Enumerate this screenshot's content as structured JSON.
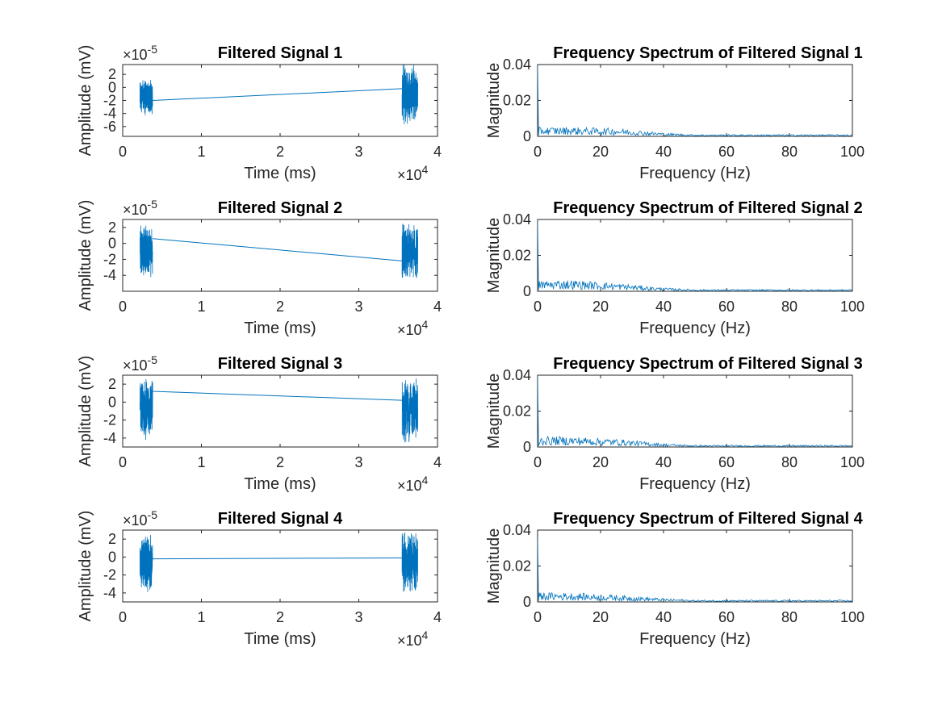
{
  "colors": {
    "series": "#0072BD",
    "axes": "#262626",
    "text": "#000000"
  },
  "chart_data": [
    {
      "type": "line",
      "panel": "signal",
      "index": 1,
      "title": "Filtered Signal 1",
      "xlabel": "Time (ms)",
      "ylabel": "Amplitude (mV)",
      "x_exponent_label": "×10",
      "x_exponent": "4",
      "y_exponent_label": "×10",
      "y_exponent": "-5",
      "xlim": [
        0,
        4
      ],
      "ylim": [
        -7.5,
        3.5
      ],
      "xticks": [
        "0",
        "1",
        "2",
        "3",
        "4"
      ],
      "xtick_values": [
        0,
        1,
        2,
        3,
        4
      ],
      "yticks": [
        "2",
        "0",
        "-2",
        "-4",
        "-6"
      ],
      "ytick_values": [
        2,
        0,
        -2,
        -4,
        -6
      ],
      "bursts": [
        {
          "x_start": 0.22,
          "x_end": 0.38,
          "center": -1.5,
          "amplitude": 3.0
        },
        {
          "x_start": 3.55,
          "x_end": 3.75,
          "center": -1.0,
          "amplitude": 5.0
        }
      ],
      "connector": {
        "x": [
          0.38,
          3.55
        ],
        "y": [
          -2.0,
          -0.2
        ]
      }
    },
    {
      "type": "line",
      "panel": "signal",
      "index": 2,
      "title": "Filtered Signal 2",
      "xlabel": "Time (ms)",
      "ylabel": "Amplitude (mV)",
      "x_exponent_label": "×10",
      "x_exponent": "4",
      "y_exponent_label": "×10",
      "y_exponent": "-5",
      "xlim": [
        0,
        4
      ],
      "ylim": [
        -6,
        3
      ],
      "xticks": [
        "0",
        "1",
        "2",
        "3",
        "4"
      ],
      "xtick_values": [
        0,
        1,
        2,
        3,
        4
      ],
      "yticks": [
        "2",
        "0",
        "-2",
        "-4"
      ],
      "ytick_values": [
        2,
        0,
        -2,
        -4
      ],
      "bursts": [
        {
          "x_start": 0.22,
          "x_end": 0.38,
          "center": -0.8,
          "amplitude": 3.5
        },
        {
          "x_start": 3.55,
          "x_end": 3.75,
          "center": -1.0,
          "amplitude": 4.0
        }
      ],
      "connector": {
        "x": [
          0.38,
          3.55
        ],
        "y": [
          0.6,
          -2.2
        ]
      }
    },
    {
      "type": "line",
      "panel": "signal",
      "index": 3,
      "title": "Filtered Signal 3",
      "xlabel": "Time (ms)",
      "ylabel": "Amplitude (mV)",
      "x_exponent_label": "×10",
      "x_exponent": "4",
      "y_exponent_label": "×10",
      "y_exponent": "-5",
      "xlim": [
        0,
        4
      ],
      "ylim": [
        -5,
        3
      ],
      "xticks": [
        "0",
        "1",
        "2",
        "3",
        "4"
      ],
      "xtick_values": [
        0,
        1,
        2,
        3,
        4
      ],
      "yticks": [
        "2",
        "0",
        "-2",
        "-4"
      ],
      "ytick_values": [
        2,
        0,
        -2,
        -4
      ],
      "bursts": [
        {
          "x_start": 0.22,
          "x_end": 0.38,
          "center": -0.8,
          "amplitude": 3.5
        },
        {
          "x_start": 3.55,
          "x_end": 3.75,
          "center": -0.8,
          "amplitude": 3.8
        }
      ],
      "connector": {
        "x": [
          0.38,
          3.55
        ],
        "y": [
          1.2,
          0.2
        ]
      }
    },
    {
      "type": "line",
      "panel": "signal",
      "index": 4,
      "title": "Filtered Signal 4",
      "xlabel": "Time (ms)",
      "ylabel": "Amplitude (mV)",
      "x_exponent_label": "×10",
      "x_exponent": "4",
      "y_exponent_label": "×10",
      "y_exponent": "-5",
      "xlim": [
        0,
        4
      ],
      "ylim": [
        -5,
        3
      ],
      "xticks": [
        "0",
        "1",
        "2",
        "3",
        "4"
      ],
      "xtick_values": [
        0,
        1,
        2,
        3,
        4
      ],
      "yticks": [
        "2",
        "0",
        "-2",
        "-4"
      ],
      "ytick_values": [
        2,
        0,
        -2,
        -4
      ],
      "bursts": [
        {
          "x_start": 0.22,
          "x_end": 0.38,
          "center": -0.8,
          "amplitude": 3.5
        },
        {
          "x_start": 3.55,
          "x_end": 3.75,
          "center": -0.5,
          "amplitude": 3.8
        }
      ],
      "connector": {
        "x": [
          0.38,
          3.55
        ],
        "y": [
          -0.2,
          -0.1
        ]
      }
    },
    {
      "type": "line",
      "panel": "spectrum",
      "index": 1,
      "title": "Frequency Spectrum of Filtered Signal 1",
      "xlabel": "Frequency (Hz)",
      "ylabel": "Magnitude",
      "xlim": [
        0,
        100
      ],
      "ylim": [
        0,
        0.04
      ],
      "xticks": [
        "0",
        "20",
        "40",
        "60",
        "80",
        "100"
      ],
      "xtick_values": [
        0,
        20,
        40,
        60,
        80,
        100
      ],
      "yticks": [
        "0.04",
        "0.02",
        "0"
      ],
      "ytick_values": [
        0.04,
        0.02,
        0
      ],
      "peak_at_zero": 0.04,
      "envelope": {
        "x": [
          0,
          10,
          25,
          40,
          50,
          100
        ],
        "y": [
          0.004,
          0.004,
          0.0035,
          0.0015,
          0.0008,
          0.0008
        ]
      }
    },
    {
      "type": "line",
      "panel": "spectrum",
      "index": 2,
      "title": "Frequency Spectrum of Filtered Signal 2",
      "xlabel": "Frequency (Hz)",
      "ylabel": "Magnitude",
      "xlim": [
        0,
        100
      ],
      "ylim": [
        0,
        0.04
      ],
      "xticks": [
        "0",
        "20",
        "40",
        "60",
        "80",
        "100"
      ],
      "xtick_values": [
        0,
        20,
        40,
        60,
        80,
        100
      ],
      "yticks": [
        "0.04",
        "0.02",
        "0"
      ],
      "ytick_values": [
        0.04,
        0.02,
        0
      ],
      "peak_at_zero": 0.04,
      "envelope": {
        "x": [
          0,
          10,
          25,
          40,
          50,
          100
        ],
        "y": [
          0.0045,
          0.005,
          0.0035,
          0.0015,
          0.0008,
          0.0008
        ]
      }
    },
    {
      "type": "line",
      "panel": "spectrum",
      "index": 3,
      "title": "Frequency Spectrum of Filtered Signal 3",
      "xlabel": "Frequency (Hz)",
      "ylabel": "Magnitude",
      "xlim": [
        0,
        100
      ],
      "ylim": [
        0,
        0.04
      ],
      "xticks": [
        "0",
        "20",
        "40",
        "60",
        "80",
        "100"
      ],
      "xtick_values": [
        0,
        20,
        40,
        60,
        80,
        100
      ],
      "yticks": [
        "0.04",
        "0.02",
        "0"
      ],
      "ytick_values": [
        0.04,
        0.02,
        0
      ],
      "peak_at_zero": 0.04,
      "envelope": {
        "x": [
          0,
          10,
          25,
          40,
          50,
          100
        ],
        "y": [
          0.0045,
          0.0045,
          0.0035,
          0.0015,
          0.0008,
          0.0008
        ]
      }
    },
    {
      "type": "line",
      "panel": "spectrum",
      "index": 4,
      "title": "Frequency Spectrum of Filtered Signal 4",
      "xlabel": "Frequency (Hz)",
      "ylabel": "Magnitude",
      "xlim": [
        0,
        100
      ],
      "ylim": [
        0,
        0.04
      ],
      "xticks": [
        "0",
        "20",
        "40",
        "60",
        "80",
        "100"
      ],
      "xtick_values": [
        0,
        20,
        40,
        60,
        80,
        100
      ],
      "yticks": [
        "0.04",
        "0.02",
        "0"
      ],
      "ytick_values": [
        0.04,
        0.02,
        0
      ],
      "peak_at_zero": 0.036,
      "envelope": {
        "x": [
          0,
          10,
          25,
          40,
          50,
          100
        ],
        "y": [
          0.004,
          0.004,
          0.003,
          0.0015,
          0.0008,
          0.0008
        ]
      }
    }
  ]
}
